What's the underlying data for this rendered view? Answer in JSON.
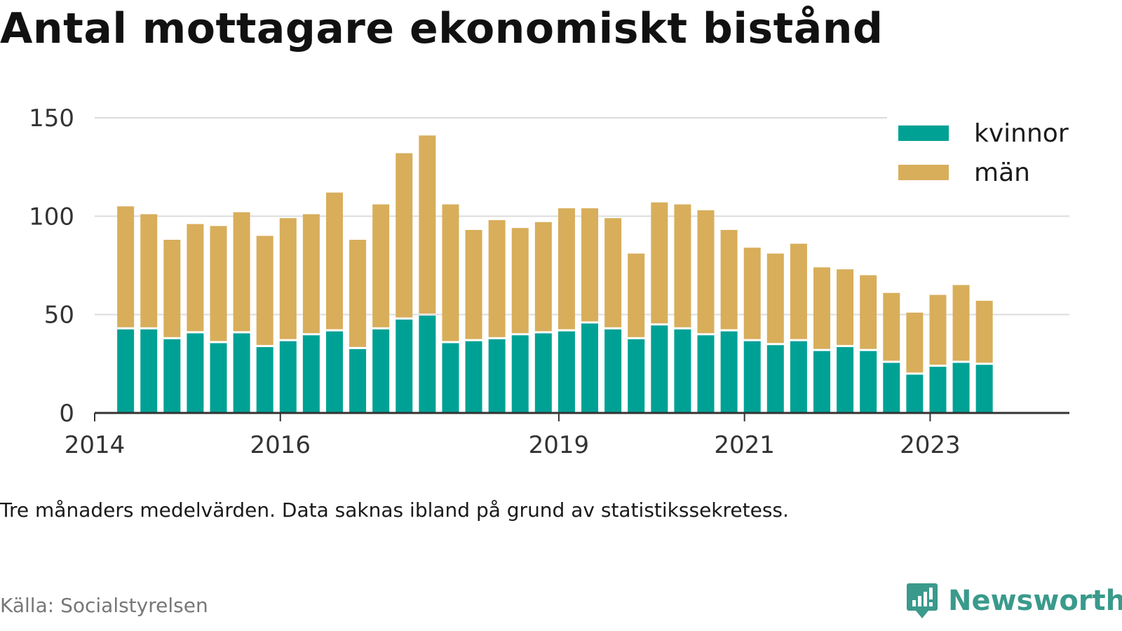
{
  "title": "Antal mottagare ekonomiskt bistånd",
  "note": "Tre månaders medelvärden. Data saknas ibland på grund av statistikssekretess.",
  "source": "Källa: Socialstyrelsen",
  "brand": {
    "name": "Newsworthy",
    "icon": "newsworthy-logo-icon",
    "color": "#3a9a8c"
  },
  "colors": {
    "kvinnor": "#00a195",
    "man": "#d8ae5b",
    "grid": "#dcdcdc",
    "axis": "#333333"
  },
  "chart_data": {
    "type": "bar",
    "stacked": true,
    "title": "Antal mottagare ekonomiskt bistånd",
    "ylim": [
      0,
      150
    ],
    "yticks": [
      0,
      50,
      100,
      150
    ],
    "xticks": [
      "2014",
      "2016",
      "2019",
      "2021",
      "2023"
    ],
    "x_range": [
      "2014-01",
      "2024-07"
    ],
    "grid": true,
    "legend_position": "top-right",
    "x": [
      "2014-05",
      "2014-08",
      "2014-11",
      "2015-02",
      "2015-05",
      "2015-08",
      "2015-11",
      "2016-02",
      "2016-05",
      "2016-08",
      "2016-11",
      "2017-02",
      "2017-05",
      "2017-08",
      "2017-11",
      "2018-02",
      "2018-05",
      "2018-08",
      "2018-11",
      "2019-02",
      "2019-05",
      "2019-08",
      "2019-11",
      "2020-02",
      "2020-05",
      "2020-08",
      "2020-11",
      "2021-02",
      "2021-05",
      "2021-08",
      "2021-11",
      "2022-02",
      "2022-05",
      "2022-08",
      "2022-11",
      "2023-02",
      "2023-05",
      "2023-08"
    ],
    "series": [
      {
        "name": "kvinnor",
        "values": [
          43,
          43,
          38,
          41,
          36,
          41,
          34,
          37,
          40,
          42,
          33,
          43,
          48,
          50,
          36,
          37,
          38,
          40,
          41,
          42,
          46,
          43,
          38,
          45,
          43,
          40,
          42,
          37,
          35,
          37,
          32,
          34,
          32,
          26,
          20,
          24,
          26,
          25
        ]
      },
      {
        "name": "män",
        "values": [
          62,
          58,
          50,
          55,
          59,
          61,
          56,
          62,
          61,
          70,
          55,
          63,
          84,
          91,
          70,
          56,
          60,
          54,
          56,
          62,
          58,
          56,
          43,
          62,
          63,
          63,
          51,
          47,
          46,
          49,
          42,
          39,
          38,
          35,
          31,
          36,
          39,
          32
        ]
      }
    ]
  }
}
